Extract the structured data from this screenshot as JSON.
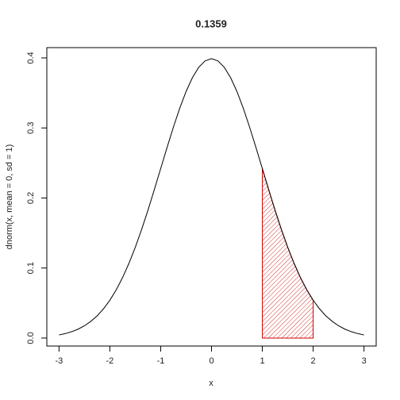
{
  "chart_data": {
    "type": "line",
    "title": "0.1359",
    "x_label": "x",
    "y_label": "dnorm(x, mean = 0, sd = 1)",
    "x": [
      -3,
      -2.875,
      -2.75,
      -2.625,
      -2.5,
      -2.375,
      -2.25,
      -2.125,
      -2,
      -1.875,
      -1.75,
      -1.625,
      -1.5,
      -1.375,
      -1.25,
      -1.125,
      -1,
      -0.875,
      -0.75,
      -0.625,
      -0.5,
      -0.375,
      -0.25,
      -0.125,
      0,
      0.125,
      0.25,
      0.375,
      0.5,
      0.625,
      0.75,
      0.875,
      1,
      1.125,
      1.25,
      1.375,
      1.5,
      1.625,
      1.75,
      1.875,
      2,
      2.125,
      2.25,
      2.375,
      2.5,
      2.625,
      2.75,
      2.875,
      3
    ],
    "values": [
      0.0044,
      0.0064,
      0.0091,
      0.0127,
      0.0175,
      0.0238,
      0.0317,
      0.0417,
      0.054,
      0.0688,
      0.0863,
      0.1066,
      0.1295,
      0.155,
      0.1826,
      0.2119,
      0.242,
      0.272,
      0.3011,
      0.3282,
      0.3521,
      0.3719,
      0.3867,
      0.3958,
      0.3989,
      0.3958,
      0.3867,
      0.3719,
      0.3521,
      0.3282,
      0.3011,
      0.272,
      0.242,
      0.2119,
      0.1826,
      0.155,
      0.1295,
      0.1066,
      0.0863,
      0.0688,
      0.054,
      0.0417,
      0.0317,
      0.0238,
      0.0175,
      0.0127,
      0.0091,
      0.0064,
      0.0044
    ],
    "color": "#000000",
    "shade": {
      "x": [
        1,
        1.125,
        1.25,
        1.375,
        1.5,
        1.625,
        1.75,
        1.875,
        2
      ],
      "values": [
        0.242,
        0.2119,
        0.1826,
        0.155,
        0.1295,
        0.1066,
        0.0863,
        0.0688,
        0.054
      ],
      "color": "#cc0000"
    },
    "xlim": [
      -3.24,
      3.24
    ],
    "xticks": [
      -3,
      -2,
      -1,
      0,
      1,
      2,
      3
    ],
    "ylim": [
      -0.0114,
      0.4147
    ],
    "yticks": [
      {
        "value": 0,
        "label": "0.0"
      },
      0.1,
      0.2,
      0.3,
      0.4
    ]
  }
}
